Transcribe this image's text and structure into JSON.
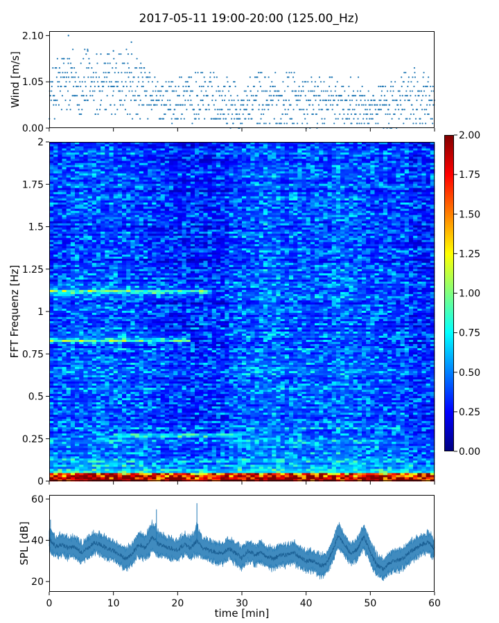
{
  "figure_title": "2017-05-11 19:00-20:00 (125.00_Hz)",
  "chart_data": [
    {
      "type": "scatter",
      "name": "wind-panel",
      "ylabel": "Wind [m/s]",
      "xlim": [
        0,
        60
      ],
      "ylim": [
        0,
        2.2
      ],
      "yticks": [
        0.0,
        1.05,
        2.1
      ],
      "ytick_labels": [
        "0.00",
        "1.05",
        "2.10"
      ],
      "xticks": [
        0,
        10,
        20,
        30,
        40,
        50,
        60
      ],
      "color": "#1f77b4",
      "quantization_step": 0.105,
      "envelope": {
        "x": [
          0,
          2,
          4,
          6,
          8,
          10,
          12,
          14,
          16,
          18,
          20,
          22,
          24,
          26,
          28,
          30,
          32,
          34,
          36,
          38,
          40,
          42,
          44,
          46,
          48,
          50,
          52,
          54,
          56,
          58,
          60
        ],
        "max": [
          1.25,
          1.7,
          1.75,
          1.75,
          1.7,
          1.65,
          1.75,
          1.5,
          1.15,
          1.0,
          1.2,
          1.2,
          1.25,
          1.2,
          1.15,
          1.0,
          1.2,
          1.25,
          1.2,
          1.25,
          1.05,
          1.2,
          1.15,
          1.05,
          1.2,
          0.95,
          0.9,
          1.1,
          1.35,
          1.35,
          0.95
        ],
        "min": [
          0.2,
          0.25,
          0.3,
          0.3,
          0.3,
          0.3,
          0.3,
          0.2,
          0.2,
          0.15,
          0.1,
          0.15,
          0.2,
          0.2,
          0.05,
          0.0,
          0.05,
          0.1,
          0.1,
          0.1,
          0.05,
          0.05,
          0.1,
          0.1,
          0.1,
          0.05,
          0.0,
          0.05,
          0.1,
          0.1,
          0.05
        ]
      },
      "outliers": [
        {
          "x": 3.0,
          "y": 2.1
        },
        {
          "x": 12.8,
          "y": 1.95
        },
        {
          "x": 10.0,
          "y": 1.75
        },
        {
          "x": 6.0,
          "y": 1.75
        }
      ]
    },
    {
      "type": "heatmap",
      "name": "spectrogram-panel",
      "ylabel": "FFT Frequenz [Hz]",
      "xlim": [
        0,
        60
      ],
      "ylim": [
        0,
        2
      ],
      "yticks": [
        0,
        0.25,
        0.5,
        0.75,
        1,
        1.25,
        1.5,
        1.75,
        2
      ],
      "ytick_labels": [
        "0",
        "0.25",
        "0.5",
        "0.75",
        "1",
        "1.25",
        "1.5",
        "1.75",
        "2"
      ],
      "colormap": "jet",
      "clim": [
        0,
        2
      ],
      "colorbar_ticks": [
        0.0,
        0.25,
        0.5,
        0.75,
        1.0,
        1.25,
        1.5,
        1.75,
        2.0
      ],
      "colorbar_tick_labels": [
        "0.00",
        "0.25",
        "0.50",
        "0.75",
        "1.00",
        "1.25",
        "1.50",
        "1.75",
        "2.00"
      ],
      "features": [
        {
          "desc": "low-frequency band",
          "f_max": 0.05,
          "level": 1.5
        },
        {
          "desc": "harmonic",
          "t": [
            0,
            25
          ],
          "f": 1.12,
          "level": 0.9
        },
        {
          "desc": "harmonic",
          "t": [
            0,
            22
          ],
          "f": 0.83,
          "level": 0.85
        },
        {
          "desc": "harmonic",
          "t": [
            10,
            30
          ],
          "f": 0.27,
          "level": 0.7
        }
      ]
    },
    {
      "type": "line",
      "name": "spl-panel",
      "xlabel": "time [min]",
      "ylabel": "SPL [dB]",
      "xlim": [
        0,
        60
      ],
      "ylim": [
        15,
        62
      ],
      "yticks": [
        20,
        40,
        60
      ],
      "xticks": [
        0,
        10,
        20,
        30,
        40,
        50,
        60
      ],
      "color": "#1f77b4",
      "x": [
        0,
        1,
        2,
        3,
        4,
        5,
        6,
        7,
        8,
        9,
        10,
        11,
        12,
        13,
        14,
        15,
        16,
        17,
        18,
        19,
        20,
        21,
        22,
        23,
        24,
        25,
        26,
        27,
        28,
        29,
        30,
        31,
        32,
        33,
        34,
        35,
        36,
        37,
        38,
        39,
        40,
        41,
        42,
        43,
        44,
        45,
        46,
        47,
        48,
        49,
        50,
        51,
        52,
        53,
        54,
        55,
        56,
        57,
        58,
        59,
        60
      ],
      "y": [
        41,
        37,
        38,
        36,
        37,
        34,
        36,
        39,
        38,
        36,
        35,
        33,
        31,
        34,
        38,
        36,
        42,
        38,
        37,
        36,
        35,
        38,
        36,
        40,
        36,
        35,
        34,
        34,
        36,
        34,
        31,
        35,
        33,
        34,
        32,
        31,
        33,
        33,
        34,
        32,
        30,
        30,
        28,
        28,
        34,
        42,
        38,
        33,
        36,
        42,
        34,
        28,
        26,
        29,
        30,
        31,
        34,
        36,
        38,
        39,
        36
      ],
      "band": [
        5,
        5,
        5,
        5,
        5,
        5,
        5,
        5,
        5,
        5,
        5,
        5,
        5,
        5,
        6,
        6,
        7,
        6,
        5,
        5,
        5,
        5,
        5,
        7,
        5,
        5,
        5,
        5,
        5,
        5,
        5,
        5,
        5,
        5,
        5,
        5,
        5,
        5,
        5,
        5,
        5,
        5,
        5,
        5,
        5,
        6,
        5,
        5,
        5,
        6,
        5,
        5,
        5,
        5,
        5,
        5,
        5,
        5,
        5,
        5,
        5
      ],
      "spikes": [
        {
          "x": 23.0,
          "y": 58
        },
        {
          "x": 16.7,
          "y": 55
        },
        {
          "x": 0.2,
          "y": 50
        }
      ]
    }
  ]
}
